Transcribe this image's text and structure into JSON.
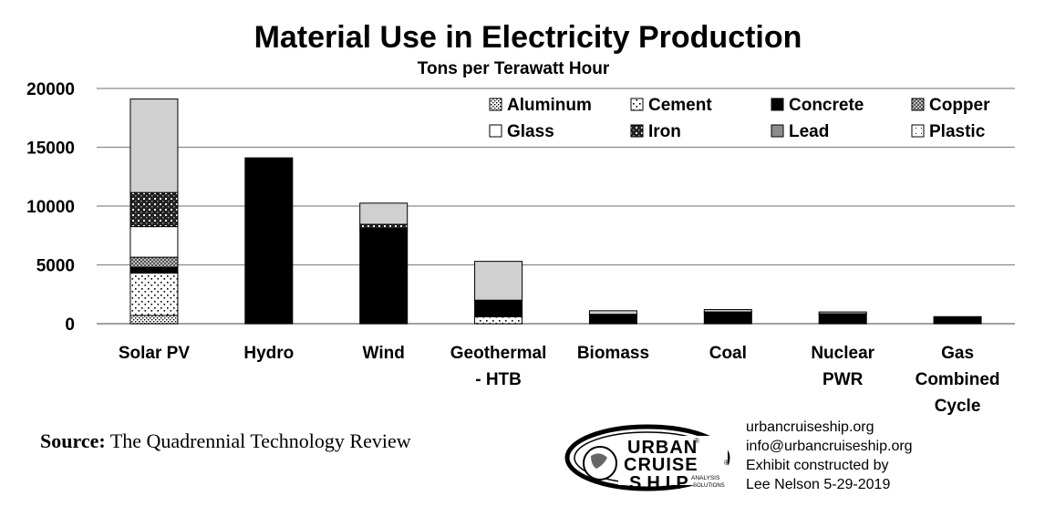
{
  "chart_data": {
    "type": "bar",
    "stacked": true,
    "title": "Material Use in Electricity Production",
    "subtitle": "Tons per Terawatt Hour",
    "xlabel": "",
    "ylabel": "",
    "ylim": [
      0,
      20000
    ],
    "yticks": [
      "0",
      "5000",
      "10000",
      "15000",
      "20000"
    ],
    "grid": true,
    "legend_position": "top-right",
    "categories": [
      [
        "Solar PV"
      ],
      [
        "Hydro"
      ],
      [
        "Wind"
      ],
      [
        "Geothermal",
        "- HTB"
      ],
      [
        "Biomass"
      ],
      [
        "Coal"
      ],
      [
        "Nuclear",
        "PWR"
      ],
      [
        "Gas",
        "Combined",
        "Cycle"
      ]
    ],
    "series": [
      {
        "name": "Plastic",
        "pattern": "plastic",
        "values": [
          0,
          0,
          0,
          0,
          0,
          0,
          0,
          0
        ]
      },
      {
        "name": "Aluminum",
        "pattern": "aluminum",
        "values": [
          700,
          0,
          0,
          0,
          0,
          0,
          0,
          0
        ]
      },
      {
        "name": "Cement",
        "pattern": "cement",
        "values": [
          3600,
          0,
          0,
          600,
          0,
          0,
          0,
          0
        ]
      },
      {
        "name": "Concrete",
        "pattern": "concrete",
        "values": [
          500,
          14100,
          8100,
          1400,
          750,
          950,
          800,
          600
        ]
      },
      {
        "name": "Copper",
        "pattern": "copper",
        "values": [
          850,
          0,
          0,
          0,
          0,
          0,
          0,
          0
        ]
      },
      {
        "name": "Glass",
        "pattern": "glass",
        "values": [
          2600,
          0,
          0,
          0,
          0,
          0,
          0,
          0
        ]
      },
      {
        "name": "Iron",
        "pattern": "iron",
        "values": [
          2900,
          0,
          350,
          0,
          50,
          50,
          50,
          0
        ]
      },
      {
        "name": "Lead",
        "pattern": "lead",
        "values": [
          7950,
          0,
          1800,
          3300,
          300,
          200,
          150,
          0
        ]
      }
    ],
    "legend": [
      [
        "Aluminum",
        "Cement",
        "Concrete",
        "Copper"
      ],
      [
        "Glass",
        "Iron",
        "Lead",
        "Plastic"
      ]
    ]
  },
  "source": {
    "label": "Source:",
    "text": "The Quadrennial Technology Review"
  },
  "logo": {
    "line1": "URBAN",
    "line2": "CRUISE",
    "line3": "SHIP",
    "tag1": "ANALYSIS",
    "tag2": "SOLUTIONS",
    "mark": "®"
  },
  "contact": [
    "urbancruiseship.org",
    "info@urbancruiseship.org",
    "Exhibit constructed by",
    "Lee Nelson 5-29-2019"
  ]
}
